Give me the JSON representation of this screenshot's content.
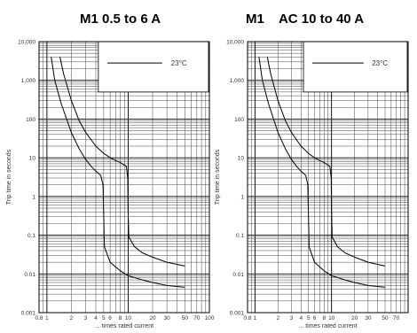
{
  "chart_data": [
    {
      "type": "line",
      "title": "M1 0.5 to 6 A",
      "xlabel": "... times rated current",
      "ylabel": "Trip time in seconds",
      "x_scale": "log",
      "y_scale": "log",
      "xlim": [
        0.8,
        100
      ],
      "ylim": [
        0.001,
        10000
      ],
      "grid": true,
      "x_ticks": [
        0.8,
        1,
        2,
        3,
        4,
        5,
        6,
        8,
        10,
        20,
        30,
        50,
        70,
        100
      ],
      "x_tick_labels": [
        "0.8",
        "1",
        "2",
        "3",
        "4",
        "5",
        "6",
        "8",
        "10",
        "20",
        "30",
        "50",
        "70",
        "100"
      ],
      "y_ticks": [
        0.001,
        0.01,
        0.1,
        1,
        10,
        100,
        1000,
        10000
      ],
      "y_tick_labels": [
        "0.001",
        "0.01",
        "0.1",
        "1",
        "10",
        "100",
        "1,000",
        "10,000"
      ],
      "legend": {
        "label": "23°C",
        "position": "top-right"
      },
      "series": [
        {
          "x": [
            1.13,
            1.25,
            1.5,
            2,
            2.5,
            3,
            3.5,
            4,
            4.6,
            4.9,
            5.0,
            5.1,
            6,
            8,
            10,
            15,
            20,
            30,
            50
          ],
          "y": [
            4000,
            1000,
            250,
            45,
            17,
            9,
            6,
            4.5,
            3.5,
            2,
            0.3,
            0.05,
            0.02,
            0.012,
            0.009,
            0.007,
            0.006,
            0.005,
            0.0045
          ]
        },
        {
          "x": [
            1.45,
            1.6,
            2,
            2.5,
            3,
            4,
            5,
            6,
            7,
            8,
            9.5,
            9.9,
            10,
            10.2,
            12,
            15,
            20,
            30,
            50
          ],
          "y": [
            4000,
            1500,
            300,
            90,
            45,
            20,
            13,
            10,
            8.5,
            7.5,
            6,
            3,
            0.4,
            0.09,
            0.05,
            0.035,
            0.027,
            0.02,
            0.016
          ]
        }
      ]
    },
    {
      "type": "line",
      "title": "M1    AC 10 to 40 A",
      "xlabel": "... times rated current",
      "ylabel": "Trip time in seconds",
      "x_scale": "log",
      "y_scale": "log",
      "xlim": [
        0.8,
        100
      ],
      "ylim": [
        0.001,
        10000
      ],
      "grid": true,
      "x_ticks": [
        0.8,
        1,
        2,
        3,
        4,
        5,
        6,
        8,
        10,
        20,
        30,
        50,
        70,
        100
      ],
      "x_tick_labels": [
        "0.8",
        "1",
        "2",
        "3",
        "4",
        "5",
        "6",
        "8",
        "10",
        "20",
        "30",
        "50",
        "70",
        "100"
      ],
      "y_ticks": [
        0.001,
        0.01,
        0.1,
        1,
        10,
        100,
        1000,
        10000
      ],
      "y_tick_labels": [
        "0.001",
        "0.01",
        "0.1",
        "1",
        "10",
        "100",
        "1,000",
        "10,000"
      ],
      "legend": {
        "label": "23°C",
        "position": "top-right"
      },
      "series": [
        {
          "x": [
            1.13,
            1.25,
            1.5,
            2,
            2.5,
            3,
            3.5,
            4,
            4.6,
            4.9,
            5.0,
            5.1,
            6,
            8,
            10,
            15,
            20,
            30,
            50
          ],
          "y": [
            4000,
            1000,
            250,
            45,
            17,
            9,
            6,
            4.5,
            3.5,
            2,
            0.3,
            0.05,
            0.02,
            0.012,
            0.009,
            0.007,
            0.006,
            0.005,
            0.0045
          ]
        },
        {
          "x": [
            1.45,
            1.6,
            2,
            2.5,
            3,
            4,
            5,
            6,
            7,
            8,
            9.5,
            9.9,
            10,
            10.2,
            12,
            15,
            20,
            30,
            50
          ],
          "y": [
            4000,
            1500,
            300,
            90,
            45,
            20,
            13,
            10,
            8.5,
            7.5,
            6,
            3,
            0.4,
            0.09,
            0.05,
            0.035,
            0.027,
            0.02,
            0.016
          ]
        }
      ]
    }
  ]
}
